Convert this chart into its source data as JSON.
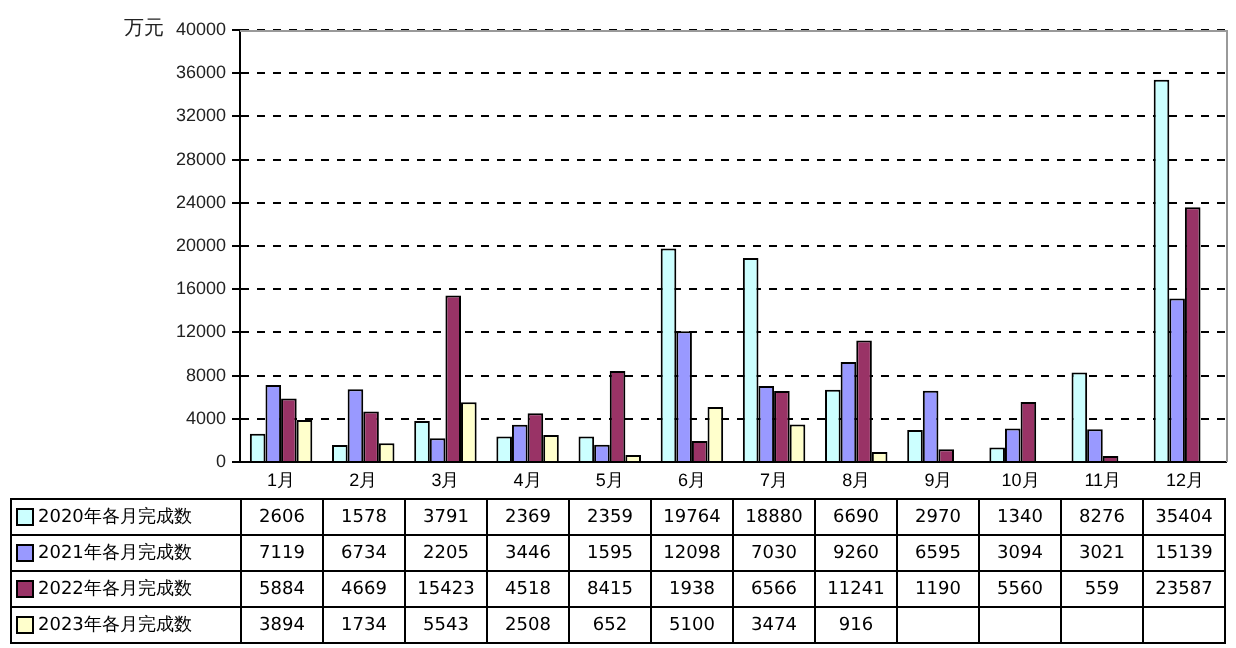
{
  "chart_data": {
    "type": "bar",
    "ylabel": "万元",
    "categories": [
      "1月",
      "2月",
      "3月",
      "4月",
      "5月",
      "6月",
      "7月",
      "8月",
      "9月",
      "10月",
      "11月",
      "12月"
    ],
    "series": [
      {
        "name": "2020年各月完成数",
        "color": "#ccffff",
        "values": [
          2606,
          1578,
          3791,
          2369,
          2359,
          19764,
          18880,
          6690,
          2970,
          1340,
          8276,
          35404
        ]
      },
      {
        "name": "2021年各月完成数",
        "color": "#9999ff",
        "values": [
          7119,
          6734,
          2205,
          3446,
          1595,
          12098,
          7030,
          9260,
          6595,
          3094,
          3021,
          15139
        ]
      },
      {
        "name": "2022年各月完成数",
        "color": "#993366",
        "values": [
          5884,
          4669,
          15423,
          4518,
          8415,
          1938,
          6566,
          11241,
          1190,
          5560,
          559,
          23587
        ]
      },
      {
        "name": "2023年各月完成数",
        "color": "#ffffcc",
        "values": [
          3894,
          1734,
          5543,
          2508,
          652,
          5100,
          3474,
          916,
          null,
          null,
          null,
          null
        ]
      }
    ],
    "ylim": [
      0,
      40000
    ],
    "yticks": [
      0,
      4000,
      8000,
      12000,
      16000,
      20000,
      24000,
      28000,
      32000,
      36000,
      40000
    ],
    "grid": "y",
    "legend": "bottom",
    "data_labels": true
  }
}
